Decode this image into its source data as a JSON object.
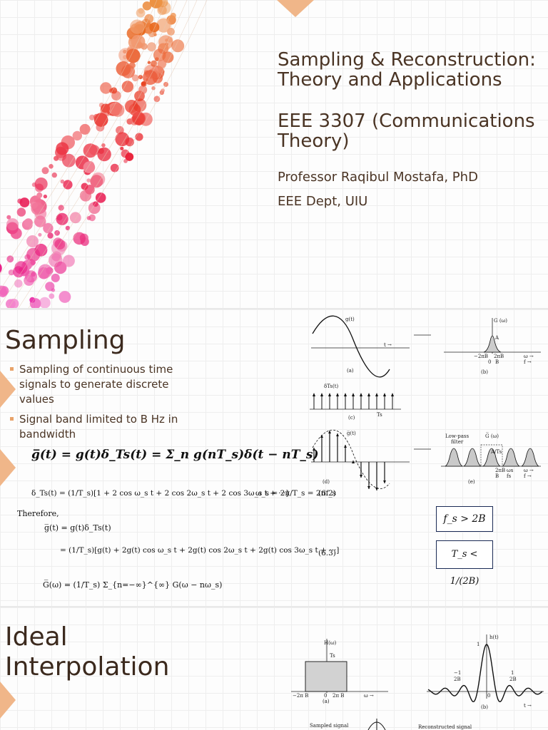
{
  "slide1": {
    "title_line1": "Sampling & Reconstruction:",
    "title_line2": "Theory and Applications",
    "course_line1": "EEE 3307 (Communications",
    "course_line2": "Theory)",
    "professor": "Professor Raqibul Mostafa, PhD",
    "department": "EEE Dept, UIU"
  },
  "slide2": {
    "heading": "Sampling",
    "bullets": [
      "Sampling of continuous time signals to generate discrete values",
      "Signal band limited to B Hz in bandwidth"
    ],
    "eq_main": "g̅(t) = g(t)δ_Ts(t) = Σ_n g(nT_s)δ(t − nT_s)",
    "eq_delta": "δ_Ts(t) = (1/T_s)[1 + 2 cos ω_s t + 2 cos 2ω_s t + 2 cos 3ω_s t + ···]",
    "eq_ws": "ω_s = 2π/T_s = 2πf_s",
    "eq_ws_num": "(6.2)",
    "therefore": "Therefore,",
    "eq_gbar1": "g̅(t) = g(t)δ_Ts(t)",
    "eq_gbar2": "= (1/T_s)[g(t) + 2g(t) cos ω_s t + 2g(t) cos 2ω_s t + 2g(t) cos 3ω_s t + ···]",
    "eq_gbar2_num": "(6.3)",
    "eq_Gbar": "G̅(ω) = (1/T_s) Σ_{n=−∞}^{∞} G(ω − nω_s)",
    "cond1": "f_s > 2B",
    "cond2": "T_s < 1/(2B)",
    "fig_labels": {
      "a": "(a)",
      "b": "(b)",
      "c": "(c)",
      "d": "(d)",
      "e": "(e)",
      "g_t": "g(t)",
      "G_w": "G (ω)",
      "A": "A",
      "delta_ts": "δTs(t)",
      "Ts": "Ts",
      "gbar": "g̅(t)",
      "Gbar": "G̅ (ω)",
      "A_Ts": "A/Ts",
      "lowpass": "Low-pass",
      "filter": "filter",
      "minus_2piB": "−2πB",
      "plus_2piB": "2πB",
      "B": "B",
      "zero": "0",
      "t": "t →",
      "omega": "ω →",
      "f": "f →",
      "ws": "ωs",
      "fs": "fs"
    }
  },
  "slide3": {
    "heading_line1": "Ideal",
    "heading_line2": "Interpolation",
    "fig_labels": {
      "H_w": "H(ω)",
      "Ts": "Ts",
      "minus_2piB": "−2π B",
      "plus_2piB": "2π B",
      "zero": "0",
      "omega": "ω →",
      "a": "(a)",
      "h_t": "h(t)",
      "one": "1",
      "neg_1_2B": "−1",
      "two_B": "2B",
      "pos_1_2B": "1",
      "b": "(b)",
      "t": "t →",
      "sampled": "Sampled signal",
      "reconstructed": "Reconstructed signal"
    }
  },
  "colors": {
    "accent_orange": "#f0a36a",
    "title_brown": "#4a3424",
    "box_border": "#1a2a55"
  }
}
